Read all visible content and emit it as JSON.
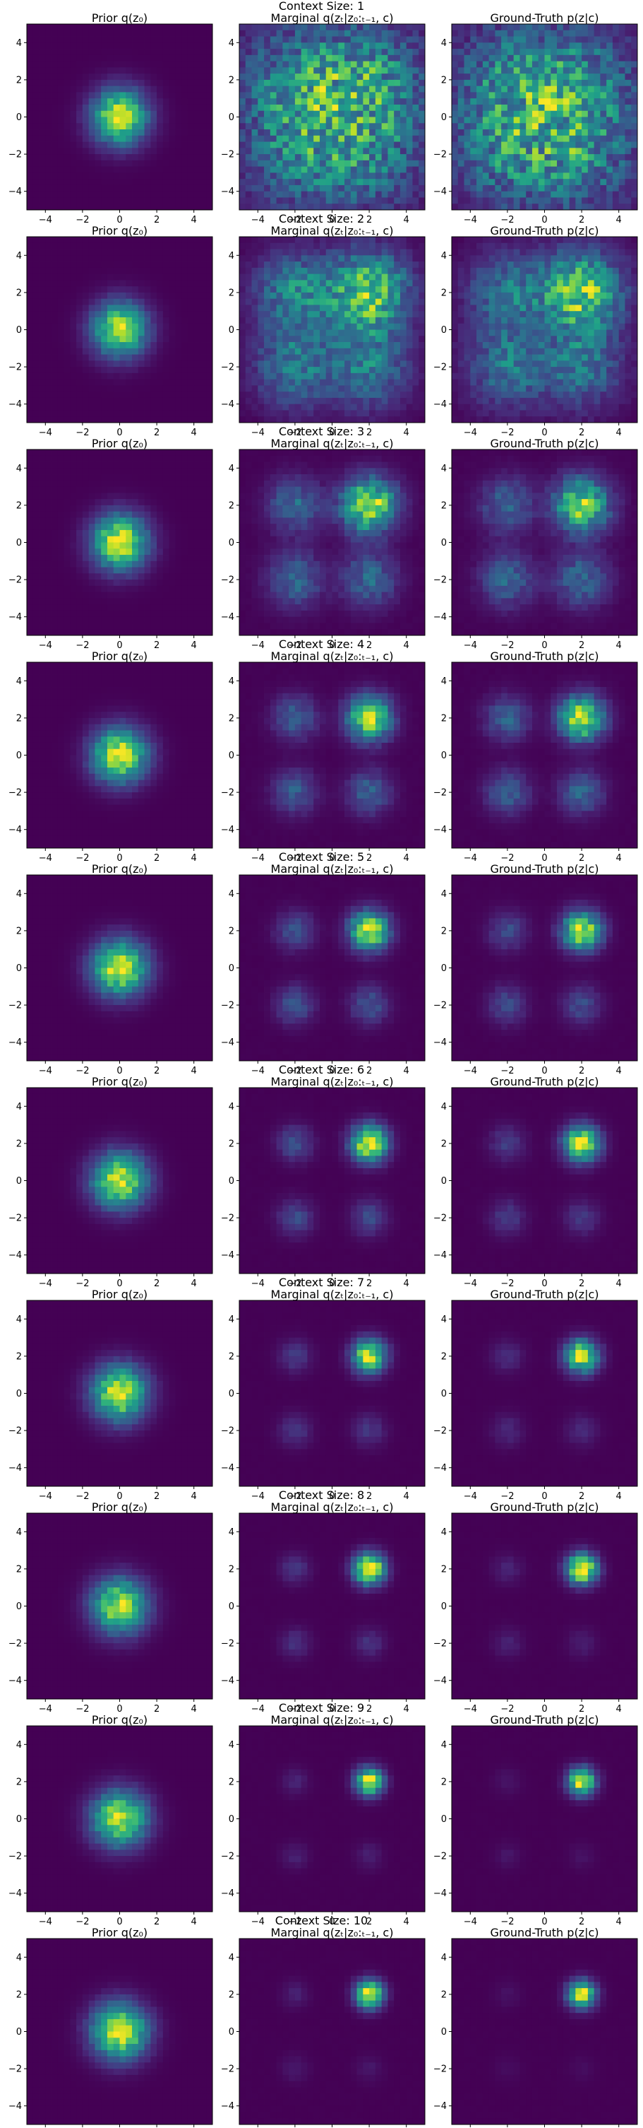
{
  "chart_data": {
    "type": "heatmap",
    "colormap": "viridis",
    "grid": false,
    "bins": 30,
    "xlim": [
      -5,
      5
    ],
    "ylim": [
      -5,
      5
    ],
    "x_ticks": [
      -4,
      -2,
      0,
      2,
      4
    ],
    "y_ticks": [
      -4,
      -2,
      0,
      2,
      4
    ],
    "column_titles": [
      "Prior q(z₀)",
      "Marginal q(zₜ|z₀:ₜ₋₁, c)",
      "Ground-Truth p(z|c)"
    ],
    "row_title_prefix": "Context Size:",
    "mixture_centers": [
      [
        2,
        2
      ],
      [
        -2,
        2
      ],
      [
        -2,
        -2
      ],
      [
        2,
        -2
      ]
    ],
    "rows": [
      {
        "context_size": 1,
        "cluster_std": 2.2,
        "gt_weights": [
          0.25,
          0.25,
          0.25,
          0.25
        ],
        "marginal_weights": [
          0.3,
          0.25,
          0.22,
          0.23
        ]
      },
      {
        "context_size": 2,
        "cluster_std": 1.5,
        "gt_weights": [
          0.4,
          0.2,
          0.2,
          0.2
        ],
        "marginal_weights": [
          0.38,
          0.22,
          0.2,
          0.2
        ]
      },
      {
        "context_size": 3,
        "cluster_std": 1.0,
        "gt_weights": [
          0.45,
          0.18,
          0.18,
          0.19
        ],
        "marginal_weights": [
          0.46,
          0.18,
          0.18,
          0.18
        ]
      },
      {
        "context_size": 4,
        "cluster_std": 0.8,
        "gt_weights": [
          0.5,
          0.17,
          0.16,
          0.17
        ],
        "marginal_weights": [
          0.5,
          0.17,
          0.16,
          0.17
        ]
      },
      {
        "context_size": 5,
        "cluster_std": 0.7,
        "gt_weights": [
          0.58,
          0.14,
          0.14,
          0.14
        ],
        "marginal_weights": [
          0.55,
          0.15,
          0.15,
          0.15
        ]
      },
      {
        "context_size": 6,
        "cluster_std": 0.65,
        "gt_weights": [
          0.65,
          0.12,
          0.12,
          0.11
        ],
        "marginal_weights": [
          0.6,
          0.14,
          0.13,
          0.13
        ]
      },
      {
        "context_size": 7,
        "cluster_std": 0.6,
        "gt_weights": [
          0.72,
          0.1,
          0.09,
          0.09
        ],
        "marginal_weights": [
          0.66,
          0.12,
          0.11,
          0.11
        ]
      },
      {
        "context_size": 8,
        "cluster_std": 0.55,
        "gt_weights": [
          0.8,
          0.07,
          0.07,
          0.06
        ],
        "marginal_weights": [
          0.72,
          0.1,
          0.09,
          0.09
        ]
      },
      {
        "context_size": 9,
        "cluster_std": 0.5,
        "gt_weights": [
          0.86,
          0.05,
          0.05,
          0.04
        ],
        "marginal_weights": [
          0.78,
          0.08,
          0.07,
          0.07
        ]
      },
      {
        "context_size": 10,
        "cluster_std": 0.5,
        "gt_weights": [
          0.9,
          0.04,
          0.03,
          0.03
        ],
        "marginal_weights": [
          0.82,
          0.07,
          0.06,
          0.05
        ]
      }
    ],
    "prior": {
      "mean": [
        0,
        0
      ],
      "std": 1.0
    }
  }
}
